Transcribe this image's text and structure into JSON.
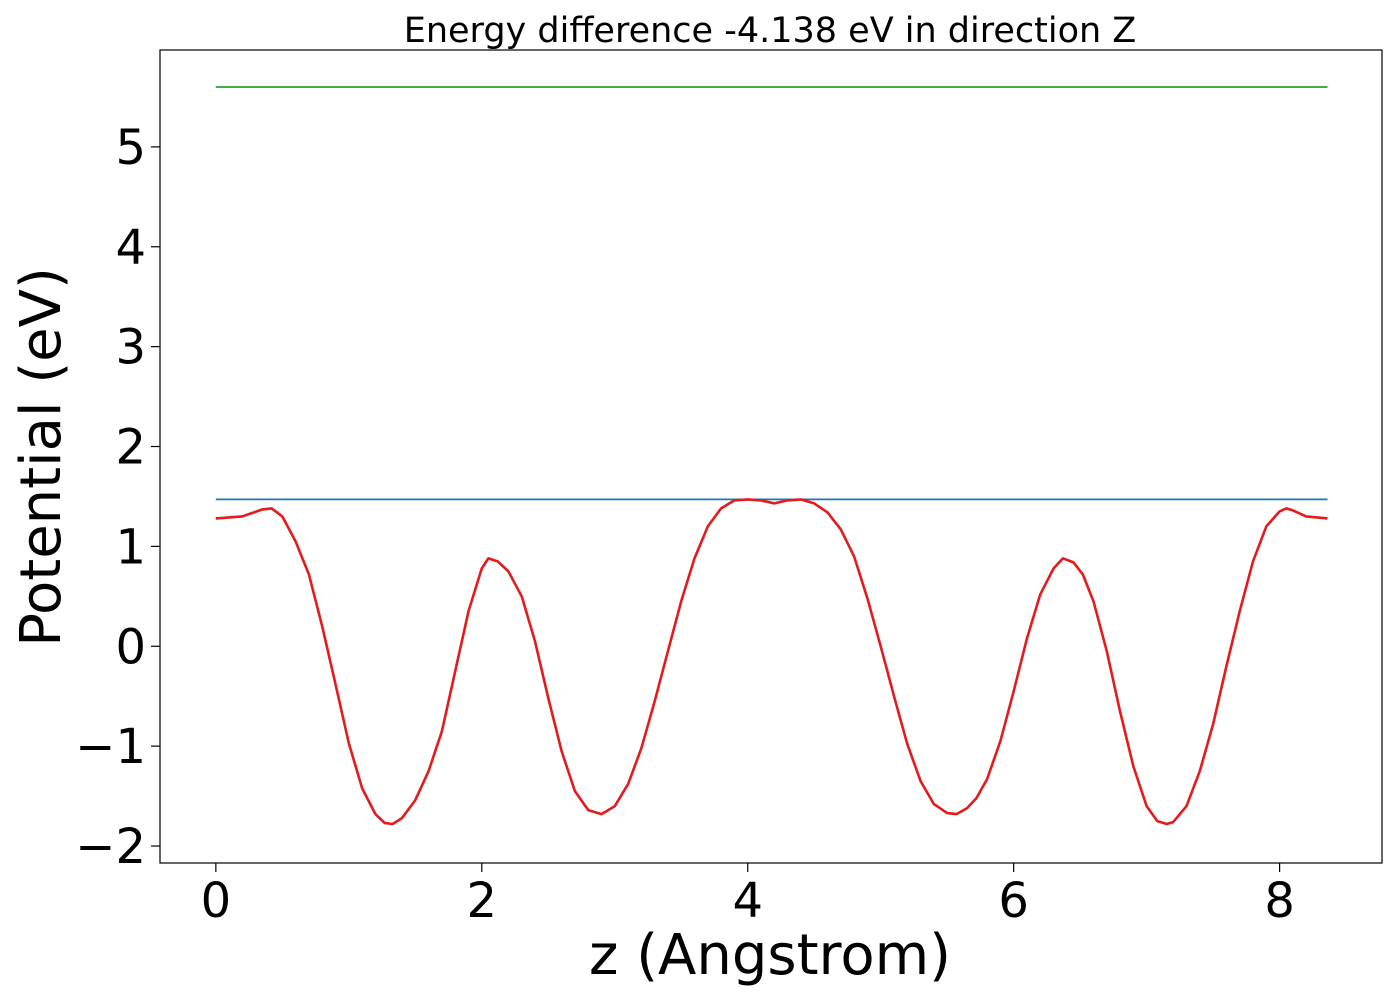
{
  "chart_data": {
    "type": "line",
    "title": "Energy difference -4.138 eV in direction Z",
    "xlabel": "z (Angstrom)",
    "ylabel": "Potential (eV)",
    "xlim": [
      -0.42,
      8.77
    ],
    "ylim": [
      -2.17,
      5.97
    ],
    "x_ticks": [
      0,
      2,
      4,
      6,
      8
    ],
    "x_tick_labels": [
      "0",
      "2",
      "4",
      "6",
      "8"
    ],
    "y_ticks": [
      -2,
      -1,
      0,
      1,
      2,
      3,
      4,
      5
    ],
    "y_tick_labels": [
      "−2",
      "−1",
      "0",
      "1",
      "2",
      "3",
      "4",
      "5"
    ],
    "grid": false,
    "series": [
      {
        "color": "#1f77b4",
        "x": [
          0,
          8.36
        ],
        "y": [
          1.47,
          1.47
        ]
      },
      {
        "color": "#2ca02c",
        "x": [
          0,
          8.36
        ],
        "y": [
          5.6,
          5.6
        ]
      },
      {
        "color": "#e41a1c",
        "x": [
          0,
          0.2,
          0.35,
          0.42,
          0.5,
          0.6,
          0.7,
          0.8,
          0.9,
          1.0,
          1.1,
          1.2,
          1.27,
          1.33,
          1.4,
          1.5,
          1.6,
          1.7,
          1.8,
          1.9,
          2.0,
          2.05,
          2.12,
          2.2,
          2.3,
          2.4,
          2.5,
          2.6,
          2.7,
          2.8,
          2.9,
          3.0,
          3.1,
          3.2,
          3.3,
          3.4,
          3.5,
          3.6,
          3.7,
          3.8,
          3.9,
          4.0,
          4.1,
          4.2,
          4.3,
          4.4,
          4.5,
          4.6,
          4.7,
          4.8,
          4.9,
          5.0,
          5.1,
          5.2,
          5.3,
          5.4,
          5.5,
          5.57,
          5.65,
          5.72,
          5.8,
          5.9,
          6.0,
          6.1,
          6.2,
          6.3,
          6.37,
          6.45,
          6.52,
          6.6,
          6.7,
          6.8,
          6.9,
          7.0,
          7.08,
          7.15,
          7.2,
          7.3,
          7.4,
          7.5,
          7.6,
          7.7,
          7.8,
          7.9,
          8.0,
          8.05,
          8.1,
          8.2,
          8.36
        ],
        "y": [
          1.28,
          1.3,
          1.37,
          1.38,
          1.3,
          1.05,
          0.72,
          0.2,
          -0.38,
          -0.97,
          -1.42,
          -1.68,
          -1.77,
          -1.78,
          -1.72,
          -1.54,
          -1.25,
          -0.85,
          -0.25,
          0.35,
          0.78,
          0.88,
          0.85,
          0.75,
          0.5,
          0.05,
          -0.52,
          -1.05,
          -1.45,
          -1.64,
          -1.68,
          -1.6,
          -1.38,
          -1.02,
          -0.55,
          -0.05,
          0.45,
          0.88,
          1.2,
          1.38,
          1.46,
          1.47,
          1.46,
          1.43,
          1.46,
          1.47,
          1.43,
          1.34,
          1.17,
          0.9,
          0.48,
          0.0,
          -0.5,
          -0.98,
          -1.35,
          -1.58,
          -1.67,
          -1.68,
          -1.62,
          -1.52,
          -1.33,
          -0.95,
          -0.45,
          0.08,
          0.52,
          0.78,
          0.88,
          0.84,
          0.72,
          0.45,
          -0.05,
          -0.65,
          -1.2,
          -1.6,
          -1.75,
          -1.78,
          -1.76,
          -1.6,
          -1.25,
          -0.78,
          -0.2,
          0.35,
          0.85,
          1.2,
          1.35,
          1.38,
          1.36,
          1.3,
          1.28
        ]
      }
    ]
  }
}
